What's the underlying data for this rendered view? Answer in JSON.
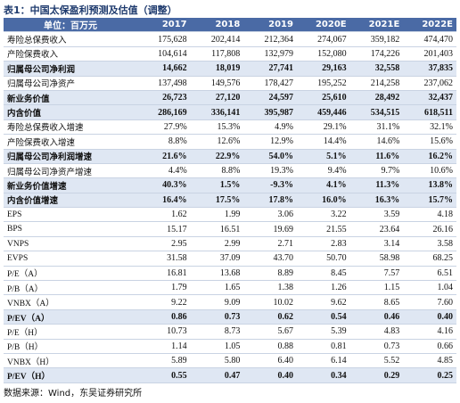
{
  "title": "表1：中国太保盈利预测及估值（调整）",
  "table": {
    "header": [
      "单位：百万元",
      "2017",
      "2018",
      "2019",
      "2020E",
      "2021E",
      "2022E"
    ],
    "rows": [
      {
        "label": "寿险总保费收入",
        "cells": [
          "175,628",
          "202,414",
          "212,364",
          "274,067",
          "359,182",
          "474,470"
        ],
        "emphasis": false
      },
      {
        "label": "产险保费收入",
        "cells": [
          "104,614",
          "117,808",
          "132,979",
          "152,080",
          "174,226",
          "201,403"
        ],
        "emphasis": false
      },
      {
        "label": "归属母公司净利润",
        "cells": [
          "14,662",
          "18,019",
          "27,741",
          "29,163",
          "32,558",
          "37,835"
        ],
        "emphasis": true
      },
      {
        "label": "归属母公司净资产",
        "cells": [
          "137,498",
          "149,576",
          "178,427",
          "195,252",
          "214,258",
          "237,062"
        ],
        "emphasis": false
      },
      {
        "label": "新业务价值",
        "cells": [
          "26,723",
          "27,120",
          "24,597",
          "25,610",
          "28,492",
          "32,437"
        ],
        "emphasis": true
      },
      {
        "label": "内含价值",
        "cells": [
          "286,169",
          "336,141",
          "395,987",
          "459,446",
          "534,515",
          "618,511"
        ],
        "emphasis": true
      },
      {
        "label": "寿险总保费收入增速",
        "cells": [
          "27.9%",
          "15.3%",
          "4.9%",
          "29.1%",
          "31.1%",
          "32.1%"
        ],
        "emphasis": false
      },
      {
        "label": "产险保费收入增速",
        "cells": [
          "8.8%",
          "12.6%",
          "12.9%",
          "14.4%",
          "14.6%",
          "15.6%"
        ],
        "emphasis": false
      },
      {
        "label": "归属母公司净利润增速",
        "cells": [
          "21.6%",
          "22.9%",
          "54.0%",
          "5.1%",
          "11.6%",
          "16.2%"
        ],
        "emphasis": true
      },
      {
        "label": "归属母公司净资产增速",
        "cells": [
          "4.4%",
          "8.8%",
          "19.3%",
          "9.4%",
          "9.7%",
          "10.6%"
        ],
        "emphasis": false
      },
      {
        "label": "新业务价值增速",
        "cells": [
          "40.3%",
          "1.5%",
          "-9.3%",
          "4.1%",
          "11.3%",
          "13.8%"
        ],
        "emphasis": true
      },
      {
        "label": "内含价值增速",
        "cells": [
          "16.4%",
          "17.5%",
          "17.8%",
          "16.0%",
          "16.3%",
          "15.7%"
        ],
        "emphasis": true
      },
      {
        "label": "EPS",
        "cells": [
          "1.62",
          "1.99",
          "3.06",
          "3.22",
          "3.59",
          "4.18"
        ],
        "emphasis": false
      },
      {
        "label": "BPS",
        "cells": [
          "15.17",
          "16.51",
          "19.69",
          "21.55",
          "23.64",
          "26.16"
        ],
        "emphasis": false
      },
      {
        "label": "VNPS",
        "cells": [
          "2.95",
          "2.99",
          "2.71",
          "2.83",
          "3.14",
          "3.58"
        ],
        "emphasis": false
      },
      {
        "label": "EVPS",
        "cells": [
          "31.58",
          "37.09",
          "43.70",
          "50.70",
          "58.98",
          "68.25"
        ],
        "emphasis": false
      },
      {
        "label": "P/E（A）",
        "cells": [
          "16.81",
          "13.68",
          "8.89",
          "8.45",
          "7.57",
          "6.51"
        ],
        "emphasis": false
      },
      {
        "label": "P/B（A）",
        "cells": [
          "1.79",
          "1.65",
          "1.38",
          "1.26",
          "1.15",
          "1.04"
        ],
        "emphasis": false
      },
      {
        "label": "VNBX（A）",
        "cells": [
          "9.22",
          "9.09",
          "10.02",
          "9.62",
          "8.65",
          "7.60"
        ],
        "emphasis": false
      },
      {
        "label": "P/EV（A）",
        "cells": [
          "0.86",
          "0.73",
          "0.62",
          "0.54",
          "0.46",
          "0.40"
        ],
        "emphasis": true
      },
      {
        "label": "P/E（H）",
        "cells": [
          "10.73",
          "8.73",
          "5.67",
          "5.39",
          "4.83",
          "4.16"
        ],
        "emphasis": false
      },
      {
        "label": "P/B（H）",
        "cells": [
          "1.14",
          "1.05",
          "0.88",
          "0.81",
          "0.73",
          "0.66"
        ],
        "emphasis": false
      },
      {
        "label": "VNBX（H）",
        "cells": [
          "5.89",
          "5.80",
          "6.40",
          "6.14",
          "5.52",
          "4.85"
        ],
        "emphasis": false
      },
      {
        "label": "P/EV（H）",
        "cells": [
          "0.55",
          "0.47",
          "0.40",
          "0.34",
          "0.29",
          "0.25"
        ],
        "emphasis": true
      }
    ]
  },
  "source": "数据来源：Wind，东吴证券研究所"
}
